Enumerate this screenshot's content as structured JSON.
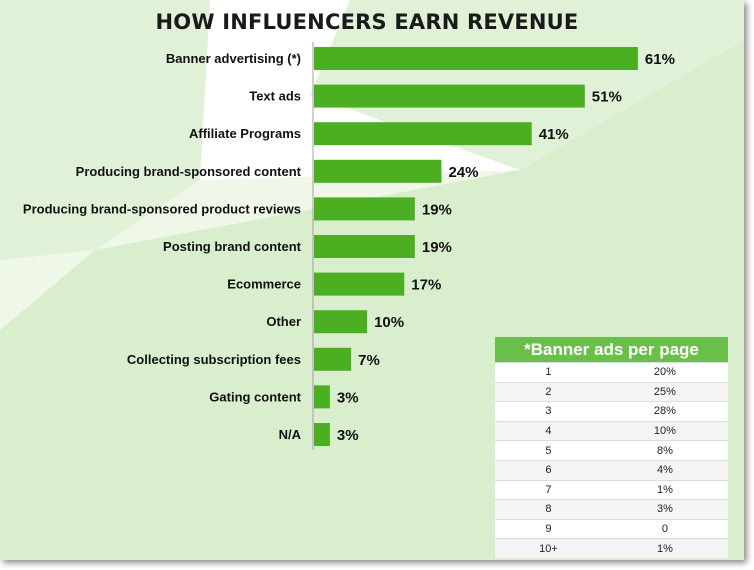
{
  "chart_data": {
    "type": "bar",
    "orientation": "horizontal",
    "title": "HOW INFLUENCERS EARN REVENUE",
    "categories": [
      "Banner advertising (*)",
      "Text ads",
      "Affiliate Programs",
      "Producing brand-sponsored content",
      "Producing brand-sponsored product reviews",
      "Posting brand content",
      "Ecommerce",
      "Other",
      "Collecting subscription fees",
      "Gating content",
      "N/A"
    ],
    "values": [
      61,
      51,
      41,
      24,
      19,
      19,
      17,
      10,
      7,
      3,
      3
    ],
    "value_labels": [
      "61%",
      "51%",
      "41%",
      "24%",
      "19%",
      "19%",
      "17%",
      "10%",
      "7%",
      "3%",
      "3%"
    ],
    "xlim": [
      0,
      65
    ],
    "grid": false,
    "bar_color": "#4caf22"
  },
  "inset_table": {
    "header": "*Banner ads per page",
    "rows": [
      [
        "1",
        "20%"
      ],
      [
        "2",
        "25%"
      ],
      [
        "3",
        "28%"
      ],
      [
        "4",
        "10%"
      ],
      [
        "5",
        "8%"
      ],
      [
        "6",
        "4%"
      ],
      [
        "7",
        "1%"
      ],
      [
        "8",
        "3%"
      ],
      [
        "9",
        "0"
      ],
      [
        "10+",
        "1%"
      ]
    ],
    "header_color": "#6abf4b"
  }
}
